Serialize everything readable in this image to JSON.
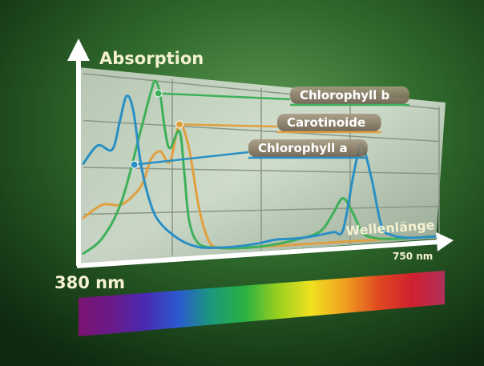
{
  "chart_data": {
    "type": "line",
    "ylabel": "Absorption",
    "xlabel": "Wellenlänge",
    "x_start_label": "380 nm",
    "x_end_label": "750 nm",
    "xlim": [
      380,
      750
    ],
    "ylim": [
      0,
      1
    ],
    "grid": true,
    "series": [
      {
        "name": "Chlorophyll a",
        "color": "#2a8fc4",
        "x": [
          380,
          395,
          410,
          418,
          425,
          432,
          440,
          450,
          460,
          480,
          500,
          520,
          540,
          560,
          580,
          600,
          620,
          640,
          650,
          660,
          665,
          670,
          680,
          690,
          700,
          720,
          750
        ],
        "y": [
          0.52,
          0.62,
          0.6,
          0.76,
          0.9,
          0.82,
          0.52,
          0.3,
          0.19,
          0.09,
          0.04,
          0.03,
          0.03,
          0.04,
          0.06,
          0.06,
          0.07,
          0.09,
          0.1,
          0.45,
          0.61,
          0.7,
          0.45,
          0.12,
          0.05,
          0.02,
          0.02
        ]
      },
      {
        "name": "Chlorophyll b",
        "color": "#3fb05a",
        "x": [
          380,
          400,
          420,
          440,
          450,
          455,
          460,
          465,
          470,
          480,
          485,
          490,
          500,
          520,
          540,
          560,
          580,
          600,
          620,
          630,
          640,
          650,
          660,
          670,
          680,
          700,
          750
        ],
        "y": [
          0.04,
          0.12,
          0.32,
          0.72,
          0.93,
          1.0,
          0.92,
          0.72,
          0.62,
          0.72,
          0.48,
          0.2,
          0.06,
          0.03,
          0.02,
          0.02,
          0.03,
          0.05,
          0.08,
          0.12,
          0.22,
          0.32,
          0.22,
          0.08,
          0.04,
          0.02,
          0.02
        ]
      },
      {
        "name": "Carotinoide",
        "color": "#e0a040",
        "x": [
          380,
          400,
          420,
          440,
          450,
          460,
          470,
          480,
          490,
          500,
          510,
          520,
          540,
          560,
          600,
          650,
          700,
          750
        ],
        "y": [
          0.23,
          0.3,
          0.3,
          0.4,
          0.55,
          0.6,
          0.54,
          0.76,
          0.62,
          0.28,
          0.08,
          0.03,
          0.02,
          0.02,
          0.02,
          0.02,
          0.02,
          0.02
        ]
      }
    ],
    "labels": [
      {
        "text": "Chlorophyll b",
        "series": "Chlorophyll b",
        "marker_x": 458,
        "marker_y": 0.93
      },
      {
        "text": "Carotinoide",
        "series": "Carotinoide",
        "marker_x": 480,
        "marker_y": 0.76
      },
      {
        "text": "Chlorophyll a",
        "series": "Chlorophyll a",
        "marker_x": 433,
        "marker_y": 0.52
      }
    ],
    "spectrum_colors": [
      "#7a1470",
      "#6a1a8a",
      "#4a2ab0",
      "#2a5ad0",
      "#1a9a7a",
      "#2ab040",
      "#9ad020",
      "#f0e020",
      "#f0a020",
      "#e04a20",
      "#d02030",
      "#b0305a"
    ]
  }
}
